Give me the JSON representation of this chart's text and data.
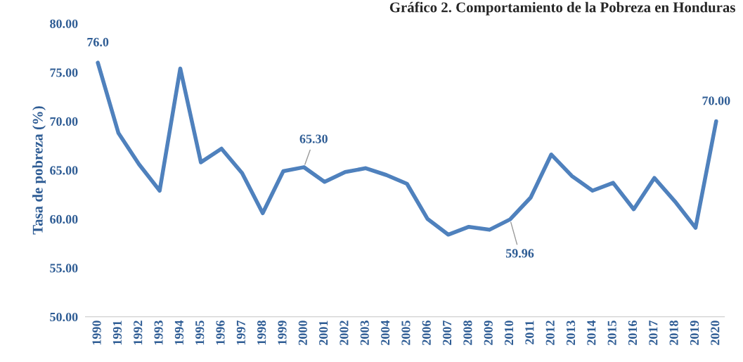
{
  "chart_data": {
    "type": "line",
    "title": "Gráfico 2. Comportamiento de la Pobreza en Honduras",
    "ylabel": "Tasa de pobreza (%)",
    "categories": [
      "1990",
      "1991",
      "1992",
      "1993",
      "1994",
      "1995",
      "1996",
      "1997",
      "1998",
      "1999",
      "2000",
      "2001",
      "2002",
      "2003",
      "2004",
      "2005",
      "2006",
      "2007",
      "2008",
      "2009",
      "2010",
      "2011",
      "2012",
      "2013",
      "2014",
      "2015",
      "2016",
      "2017",
      "2018",
      "2019",
      "2020"
    ],
    "series": [
      {
        "color": "#4f81bd",
        "values": [
          76.0,
          68.8,
          65.6,
          62.9,
          75.4,
          65.8,
          67.2,
          64.7,
          60.6,
          64.9,
          65.3,
          63.8,
          64.8,
          65.2,
          64.5,
          63.6,
          60.0,
          58.4,
          59.2,
          58.9,
          59.96,
          62.2,
          66.6,
          64.4,
          62.9,
          63.7,
          61.0,
          64.2,
          61.8,
          59.1,
          70.0
        ],
        "value_labels": [
          "76.0",
          null,
          null,
          null,
          null,
          null,
          null,
          null,
          null,
          null,
          "65.30",
          null,
          null,
          null,
          null,
          null,
          null,
          null,
          null,
          null,
          "59.96",
          null,
          null,
          null,
          null,
          null,
          null,
          null,
          null,
          null,
          "70.00"
        ]
      }
    ],
    "ylim": [
      50,
      80
    ],
    "yticks": [
      {
        "value": 50,
        "label": "50.00"
      },
      {
        "value": 55,
        "label": "55.00"
      },
      {
        "value": 60,
        "label": "60.00"
      },
      {
        "value": 65,
        "label": "65.00"
      },
      {
        "value": 70,
        "label": "70.00"
      },
      {
        "value": 75,
        "label": "75.00"
      },
      {
        "value": 80,
        "label": "80.00"
      }
    ],
    "grid": false,
    "legend": false,
    "marker": "none",
    "line_style": "solid"
  }
}
